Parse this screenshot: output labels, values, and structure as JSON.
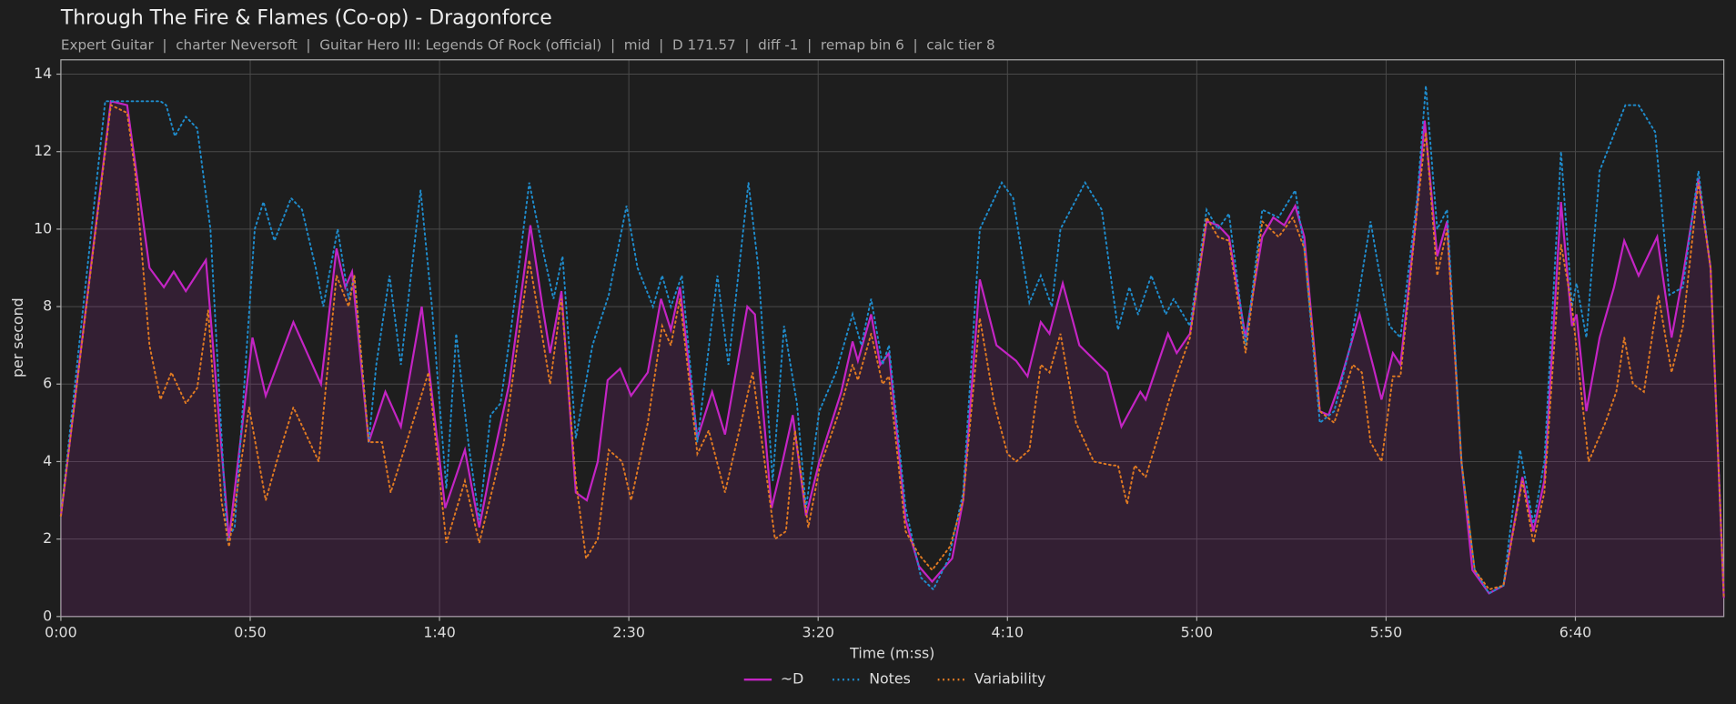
{
  "chart_data": {
    "type": "line",
    "title": "Through The Fire & Flames (Co-op) - Dragonforce",
    "subtitle": "Expert Guitar  |  charter Neversoft  |  Guitar Hero III: Legends Of Rock (official)  |  mid  |  D 171.57  |  diff -1  |  remap bin 6  |  calc tier 8",
    "xlabel": "Time (m:ss)",
    "ylabel": "per second",
    "xlim": [
      0,
      439.2
    ],
    "ylim": [
      0,
      14.37
    ],
    "xticks": [
      {
        "value": 0,
        "label": "0:00"
      },
      {
        "value": 50,
        "label": "0:50"
      },
      {
        "value": 100,
        "label": "1:40"
      },
      {
        "value": 150,
        "label": "2:30"
      },
      {
        "value": 200,
        "label": "3:20"
      },
      {
        "value": 250,
        "label": "4:10"
      },
      {
        "value": 300,
        "label": "5:00"
      },
      {
        "value": 350,
        "label": "5:50"
      },
      {
        "value": 400,
        "label": "6:40"
      }
    ],
    "yticks": [
      0,
      2,
      4,
      6,
      8,
      10,
      12,
      14
    ],
    "grid": true,
    "legend": "bottom",
    "series": [
      {
        "name": "~D",
        "color": "#c424c4",
        "linestyle": "solid",
        "fill": true,
        "x": [
          0,
          13.2,
          17.5,
          23.4,
          27.2,
          29.8,
          33,
          38.3,
          44.4,
          50.6,
          54.1,
          61.4,
          68.7,
          72.8,
          75.1,
          76.9,
          81.3,
          85.7,
          89.8,
          95.3,
          101.5,
          106.7,
          110.5,
          113.5,
          118.4,
          124,
          127.2,
          129.2,
          132.2,
          136,
          138.9,
          141.8,
          144.4,
          147.7,
          150.6,
          155,
          158.5,
          161.1,
          163.5,
          168.1,
          172,
          175.4,
          181.3,
          183.3,
          187.7,
          190.6,
          193.3,
          196.8,
          200.3,
          206.1,
          209.1,
          210.5,
          214,
          216.4,
          218.7,
          223.1,
          226.6,
          230.1,
          235.4,
          238.3,
          242.7,
          247.1,
          252.3,
          255.3,
          258.8,
          261.1,
          264.6,
          269,
          276.3,
          280.1,
          285.1,
          286.5,
          292.4,
          294.7,
          298.2,
          302.6,
          305.6,
          308.5,
          312.9,
          317.3,
          320.2,
          323.1,
          326,
          328.4,
          332.5,
          334.8,
          337.7,
          343,
          346.5,
          348.8,
          351.8,
          353.8,
          357.6,
          360.2,
          363.5,
          366.1,
          369.9,
          372.8,
          377.2,
          381,
          386,
          388.9,
          391.8,
          396.2,
          399.1,
          400.3,
          402.9,
          406.4,
          410.2,
          412.9,
          416.7,
          421.6,
          425.4,
          428.4,
          432.5,
          435.7,
          439.2
        ],
        "values": [
          2.6,
          13.3,
          13.2,
          9,
          8.5,
          8.9,
          8.4,
          9.2,
          2,
          7.2,
          5.7,
          7.6,
          6,
          9.5,
          8.5,
          8.9,
          4.5,
          5.8,
          4.9,
          8,
          2.8,
          4.3,
          2.3,
          3.8,
          6,
          10.1,
          8,
          6.8,
          8.4,
          3.2,
          3,
          4,
          6.1,
          6.4,
          5.7,
          6.3,
          8.2,
          7.4,
          8.5,
          4.6,
          5.8,
          4.7,
          8,
          7.8,
          2.8,
          4,
          5.2,
          2.6,
          4,
          5.8,
          7.1,
          6.6,
          7.8,
          6.5,
          6.8,
          2.5,
          1.3,
          0.9,
          1.5,
          3,
          8.7,
          7,
          6.6,
          6.2,
          7.6,
          7.3,
          8.6,
          7,
          6.3,
          4.9,
          5.8,
          5.6,
          7.3,
          6.8,
          7.3,
          10.2,
          10.1,
          9.8,
          7.2,
          9.8,
          10.3,
          10.1,
          10.6,
          9.8,
          5.3,
          5.2,
          6,
          7.8,
          6.5,
          5.6,
          6.8,
          6.5,
          10,
          12.8,
          9.3,
          10.2,
          4,
          1.2,
          0.6,
          0.8,
          3.6,
          2.2,
          3.5,
          10.7,
          7.5,
          7.8,
          5.3,
          7.2,
          8.5,
          9.7,
          8.8,
          9.8,
          7.2,
          8.8,
          11.3,
          9,
          0.5
        ]
      },
      {
        "name": "Notes",
        "color": "#1f8ccc",
        "linestyle": "dotted",
        "fill": false,
        "x": [
          0,
          11.7,
          26.3,
          27.8,
          30.1,
          33,
          36,
          39.5,
          43.9,
          45.9,
          51.2,
          53.5,
          56.4,
          60.8,
          63.7,
          67.3,
          69.3,
          73.1,
          76,
          77.5,
          81.3,
          83.3,
          86.8,
          89.8,
          95,
          98,
          101.8,
          104.4,
          107.6,
          110.5,
          113.5,
          116.1,
          119,
          123.7,
          127.2,
          130.1,
          132.5,
          136,
          140.4,
          144.7,
          149.4,
          152.3,
          156.4,
          158.8,
          161.1,
          164,
          168.1,
          173.4,
          176.3,
          181.6,
          184.2,
          188,
          191,
          194.4,
          196.8,
          200.3,
          204.7,
          209.1,
          211.4,
          214,
          217,
          218.7,
          223.1,
          227.2,
          230.4,
          234.5,
          238.3,
          242.7,
          248.5,
          251.5,
          255.8,
          258.8,
          261.7,
          264,
          270.5,
          274.9,
          279.2,
          282.2,
          284.5,
          288,
          291.8,
          293.9,
          298.2,
          302.6,
          305.6,
          308.5,
          312.9,
          317.3,
          321.6,
          326,
          328.4,
          332.5,
          336.3,
          340.6,
          345.9,
          348,
          350.9,
          353.8,
          358.2,
          360.5,
          363.5,
          366.1,
          369.9,
          373.4,
          377.2,
          381,
          385.4,
          388.9,
          391.8,
          396.2,
          399.1,
          400.3,
          402.9,
          406.4,
          413.2,
          416.7,
          421.1,
          424.8,
          428.4,
          432.5,
          435.7,
          439.2
        ],
        "values": [
          2.6,
          13.3,
          13.3,
          13.2,
          12.4,
          12.9,
          12.6,
          10,
          2,
          2.3,
          10,
          10.7,
          9.7,
          10.8,
          10.5,
          9,
          8,
          10,
          8.2,
          8.8,
          4.5,
          6.5,
          8.8,
          6.5,
          11,
          8,
          3.3,
          7.3,
          4.5,
          2.5,
          5.2,
          5.5,
          7.5,
          11.2,
          9.5,
          8.2,
          9.3,
          4.6,
          7,
          8.3,
          10.6,
          9,
          8,
          8.8,
          8,
          8.8,
          4.5,
          8.8,
          6.5,
          11.2,
          9,
          3.5,
          7.5,
          5.5,
          2.8,
          5.3,
          6.3,
          7.8,
          7,
          8.2,
          6.5,
          7,
          2.8,
          1,
          0.7,
          1.5,
          3.2,
          10,
          11.2,
          10.8,
          8.1,
          8.8,
          8,
          10,
          11.2,
          10.5,
          7.4,
          8.5,
          7.8,
          8.8,
          7.8,
          8.2,
          7.5,
          10.5,
          10,
          10.4,
          7,
          10.5,
          10.3,
          11,
          9.5,
          5,
          5.3,
          7,
          10.2,
          9,
          7.5,
          7.2,
          10.8,
          13.7,
          10,
          10.5,
          4,
          1.2,
          0.6,
          0.8,
          4.3,
          2.4,
          4,
          12,
          8,
          8.6,
          7.2,
          11.5,
          13.2,
          13.2,
          12.5,
          8.3,
          8.5,
          11.5,
          9,
          0.5
        ]
      },
      {
        "name": "Variability",
        "color": "#e07a22",
        "linestyle": "dotted",
        "fill": false,
        "x": [
          0,
          13.2,
          17.5,
          19.6,
          23.4,
          26.3,
          29.2,
          33,
          36,
          38.9,
          42.4,
          44.4,
          49.7,
          54.1,
          57,
          61.4,
          68.1,
          72.8,
          76,
          77.5,
          81.3,
          84.8,
          87.1,
          97.1,
          101.8,
          106.7,
          110.5,
          117,
          123.7,
          127.2,
          129.2,
          132.2,
          136,
          138.7,
          141.8,
          144.7,
          148.2,
          150.6,
          155,
          158.8,
          161.1,
          163.5,
          168.1,
          171.1,
          175.4,
          182.7,
          188.6,
          191.5,
          193.9,
          197.4,
          200.3,
          205.6,
          209.1,
          210.5,
          214,
          217,
          218.7,
          223.1,
          226.6,
          230.1,
          234.8,
          238.3,
          242.7,
          246.5,
          250,
          252.3,
          255.8,
          258.8,
          261.1,
          264,
          268.1,
          272.8,
          277.8,
          279.2,
          281.6,
          283.6,
          286.5,
          290.9,
          293.9,
          298.2,
          302.6,
          305.6,
          308.5,
          312.9,
          317.3,
          321.6,
          325.4,
          328.4,
          332.5,
          336.3,
          341.2,
          343.6,
          345.9,
          348.8,
          351.8,
          353.8,
          358.2,
          360.5,
          363.5,
          366.1,
          369.9,
          373.4,
          377.2,
          381,
          386,
          388.9,
          391.8,
          396.2,
          399.1,
          403.5,
          407.9,
          410.8,
          412.9,
          415.2,
          418.1,
          421.9,
          425.4,
          428.4,
          432.5,
          435.7,
          439.2
        ],
        "values": [
          2.6,
          13.2,
          13,
          11.5,
          7,
          5.6,
          6.3,
          5.5,
          5.9,
          7.9,
          3,
          1.8,
          5.4,
          3,
          4,
          5.4,
          4,
          8.8,
          8,
          8.8,
          4.5,
          4.5,
          3.2,
          6.3,
          1.9,
          3.5,
          1.9,
          4.5,
          9.2,
          7.2,
          6,
          8.2,
          3.5,
          1.5,
          2,
          4.3,
          4,
          3,
          5,
          7.5,
          7,
          8.2,
          4.2,
          4.8,
          3.2,
          6.3,
          2,
          2.2,
          4.8,
          2.3,
          3.8,
          5.3,
          6.5,
          6.1,
          7.3,
          6,
          6.2,
          2.2,
          1.6,
          1.2,
          1.8,
          3,
          7.7,
          5.5,
          4.2,
          4,
          4.3,
          6.5,
          6.3,
          7.3,
          5,
          4,
          3.9,
          3.9,
          2.9,
          3.9,
          3.6,
          5,
          6,
          7.2,
          10.3,
          9.8,
          9.7,
          6.8,
          10.2,
          9.8,
          10.3,
          9.5,
          5.3,
          5,
          6.5,
          6.3,
          4.5,
          4,
          6.2,
          6.2,
          10.5,
          12.5,
          8.8,
          10,
          4,
          1.2,
          0.7,
          0.8,
          3.5,
          1.9,
          3.2,
          9.6,
          8,
          4,
          5,
          5.8,
          7.2,
          6,
          5.8,
          8.3,
          6.3,
          7.5,
          11.2,
          9,
          0.5
        ]
      }
    ]
  }
}
